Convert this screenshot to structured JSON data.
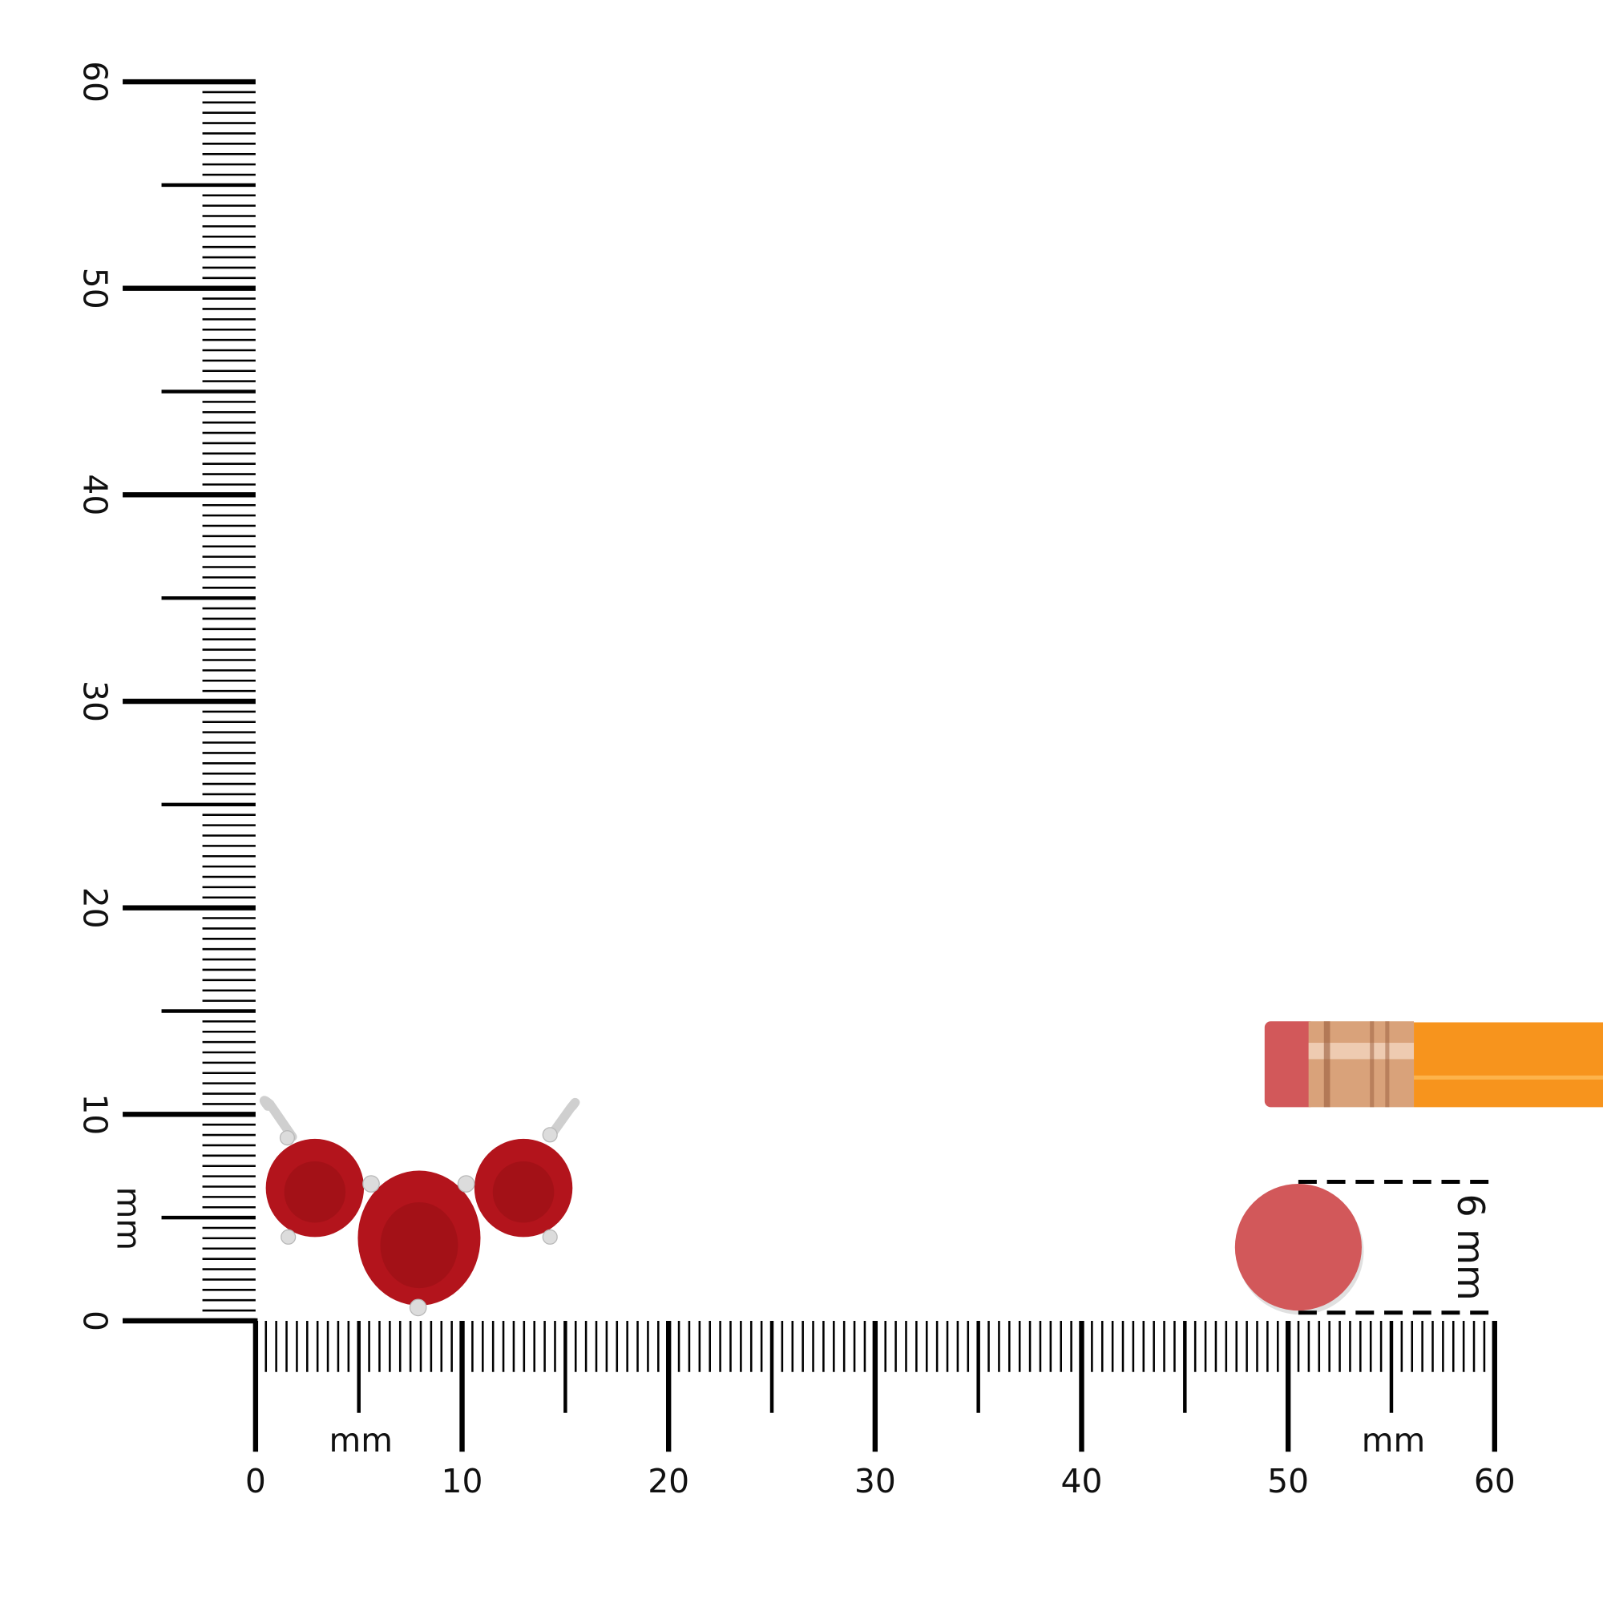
{
  "units_label": "mm",
  "x_axis": {
    "range": [
      0,
      60
    ],
    "tick_labels": [
      "0",
      "10",
      "20",
      "30",
      "40",
      "50",
      "60"
    ],
    "unit": "mm"
  },
  "y_axis": {
    "range": [
      0,
      60
    ],
    "tick_labels": [
      "0",
      "10",
      "20",
      "30",
      "40",
      "50",
      "60"
    ],
    "unit": "mm"
  },
  "reference": {
    "label": "6 mm",
    "size_mm": 6,
    "object": "pencil eraser"
  },
  "colors": {
    "gem": "#b3141c",
    "eraser": "#d2585a",
    "pencil": "#f7941d",
    "ferrule": "#d9a27a",
    "metal": "#d8d8d8"
  }
}
